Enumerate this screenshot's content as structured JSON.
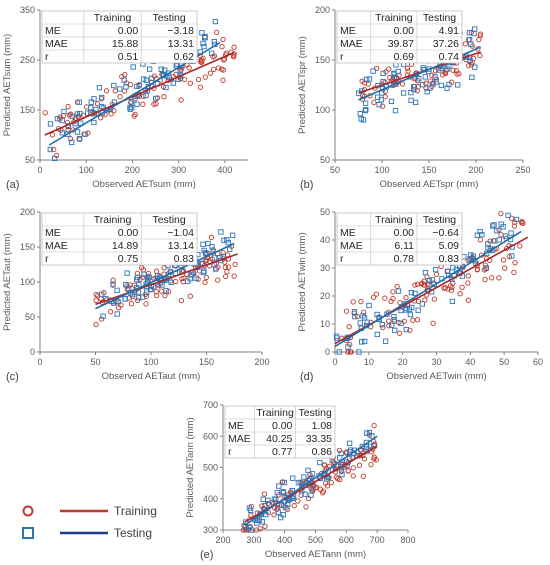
{
  "colors": {
    "training": "#c0392b",
    "testing": "#2e75b6",
    "axis": "#808080",
    "text": "#595959"
  },
  "legend": {
    "training_label": "Training",
    "testing_label": "Testing"
  },
  "chart_data": [
    {
      "panel": "(a)",
      "type": "scatter",
      "xlabel": "Observed  AETsum (mm)",
      "ylabel": "Predicted AETsum (mm)",
      "xlim": [
        0,
        450
      ],
      "ylim": [
        50,
        350
      ],
      "xticks": [
        0,
        100,
        200,
        300,
        400
      ],
      "yticks": [
        50,
        150,
        250,
        350
      ],
      "stats": {
        "header": [
          "",
          "Training",
          "Testing"
        ],
        "rows": [
          [
            "ME",
            "0.00",
            "−3.18"
          ],
          [
            "MAE",
            "15.88",
            "13.31"
          ],
          [
            "r",
            "0.51",
            "0.62"
          ]
        ]
      },
      "series": [
        {
          "name": "Training",
          "marker": "circle",
          "fit": [
            [
              10,
              100
            ],
            [
              420,
              265
            ]
          ],
          "cloud": {
            "x": [
              10,
              420
            ],
            "a": 96,
            "b": 0.4,
            "spread": 25,
            "n": 110
          }
        },
        {
          "name": "Testing",
          "marker": "square",
          "fit": [
            [
              20,
              80
            ],
            [
              390,
              285
            ]
          ],
          "cloud": {
            "x": [
              20,
              380
            ],
            "a": 80,
            "b": 0.55,
            "spread": 22,
            "n": 95
          }
        }
      ]
    },
    {
      "panel": "(b)",
      "type": "scatter",
      "xlabel": "Observed  AETspr (mm)",
      "ylabel": "Predicted AETspr (mm)",
      "xlim": [
        50,
        250
      ],
      "ylim": [
        50,
        200
      ],
      "xticks": [
        50,
        100,
        150,
        200,
        250
      ],
      "yticks": [
        50,
        100,
        150,
        200
      ],
      "stats": {
        "header": [
          "",
          "Training",
          "Testing"
        ],
        "rows": [
          [
            "ME",
            "0.00",
            "4.91"
          ],
          [
            "MAE",
            "39.87",
            "37.26"
          ],
          [
            "r",
            "0.69",
            "0.74"
          ]
        ]
      },
      "series": [
        {
          "name": "Training",
          "marker": "circle",
          "fit": [
            [
              75,
              117
            ],
            [
              205,
              158
            ]
          ],
          "cloud": {
            "x": [
              75,
              205
            ],
            "a": 93,
            "b": 0.32,
            "spread": 12,
            "n": 110
          }
        },
        {
          "name": "Testing",
          "marker": "square",
          "fit": [
            [
              75,
              110
            ],
            [
              205,
              163
            ]
          ],
          "cloud": {
            "x": [
              75,
              200
            ],
            "a": 80,
            "b": 0.41,
            "spread": 14,
            "n": 90
          }
        }
      ]
    },
    {
      "panel": "(c)",
      "type": "scatter",
      "xlabel": "Observed  AETaut (mm)",
      "ylabel": "Predicted AETaut (mm)",
      "xlim": [
        0,
        200
      ],
      "ylim": [
        0,
        200
      ],
      "xticks": [
        0,
        50,
        100,
        150,
        200
      ],
      "yticks": [
        0,
        50,
        100,
        150,
        200
      ],
      "stats": {
        "header": [
          "",
          "Training",
          "Testing"
        ],
        "rows": [
          [
            "ME",
            "0.00",
            "−1.04"
          ],
          [
            "MAE",
            "14.89",
            "13.14"
          ],
          [
            "r",
            "0.75",
            "0.83"
          ]
        ]
      },
      "series": [
        {
          "name": "Training",
          "marker": "circle",
          "fit": [
            [
              50,
              68
            ],
            [
              178,
              140
            ]
          ],
          "cloud": {
            "x": [
              50,
              178
            ],
            "a": 40,
            "b": 0.56,
            "spread": 15,
            "n": 110
          }
        },
        {
          "name": "Testing",
          "marker": "square",
          "fit": [
            [
              50,
              62
            ],
            [
              175,
              155
            ]
          ],
          "cloud": {
            "x": [
              50,
              175
            ],
            "a": 25,
            "b": 0.74,
            "spread": 13,
            "n": 90
          }
        }
      ]
    },
    {
      "panel": "(d)",
      "type": "scatter",
      "xlabel": "Observed  AETwin (mm)",
      "ylabel": "Predicted AETwin (mm)",
      "xlim": [
        0,
        60
      ],
      "ylim": [
        0,
        50
      ],
      "xticks": [
        0,
        10,
        20,
        30,
        40,
        50,
        60
      ],
      "yticks": [
        0,
        10,
        20,
        30,
        40,
        50
      ],
      "stats": {
        "header": [
          "",
          "Training",
          "Testing"
        ],
        "rows": [
          [
            "ME",
            "0.00",
            "−0.64"
          ],
          [
            "MAE",
            "6.11",
            "5.09"
          ],
          [
            "r",
            "0.78",
            "0.83"
          ]
        ]
      },
      "series": [
        {
          "name": "Training",
          "marker": "circle",
          "fit": [
            [
              0,
              3
            ],
            [
              57,
              41
            ]
          ],
          "cloud": {
            "x": [
              0,
              56
            ],
            "a": 3,
            "b": 0.67,
            "spread": 5,
            "n": 120
          }
        },
        {
          "name": "Testing",
          "marker": "square",
          "fit": [
            [
              0,
              2
            ],
            [
              55,
              43
            ]
          ],
          "cloud": {
            "x": [
              0,
              55
            ],
            "a": 2,
            "b": 0.75,
            "spread": 4.5,
            "n": 95
          }
        }
      ]
    },
    {
      "panel": "(e)",
      "type": "scatter",
      "xlabel": "Observed AETann (mm)",
      "ylabel": "Predicted AETann (mm)",
      "xlim": [
        200,
        800
      ],
      "ylim": [
        300,
        700
      ],
      "xticks": [
        200,
        300,
        400,
        500,
        600,
        700,
        800
      ],
      "yticks": [
        300,
        400,
        500,
        600,
        700
      ],
      "stats": {
        "header": [
          "",
          "Training",
          "Testing"
        ],
        "rows": [
          [
            "ME",
            "0.00",
            "1.08"
          ],
          [
            "MAE",
            "40.25",
            "33.35"
          ],
          [
            "r",
            "0.77",
            "0.86"
          ]
        ]
      },
      "series": [
        {
          "name": "Training",
          "marker": "circle",
          "fit": [
            [
              270,
              325
            ],
            [
              700,
              568
            ]
          ],
          "cloud": {
            "x": [
              265,
              700
            ],
            "a": 172,
            "b": 0.565,
            "spread": 30,
            "n": 115
          }
        },
        {
          "name": "Testing",
          "marker": "square",
          "fit": [
            [
              270,
              315
            ],
            [
              700,
              600
            ]
          ],
          "cloud": {
            "x": [
              270,
              690
            ],
            "a": 136,
            "b": 0.663,
            "spread": 24,
            "n": 95
          }
        }
      ]
    }
  ]
}
